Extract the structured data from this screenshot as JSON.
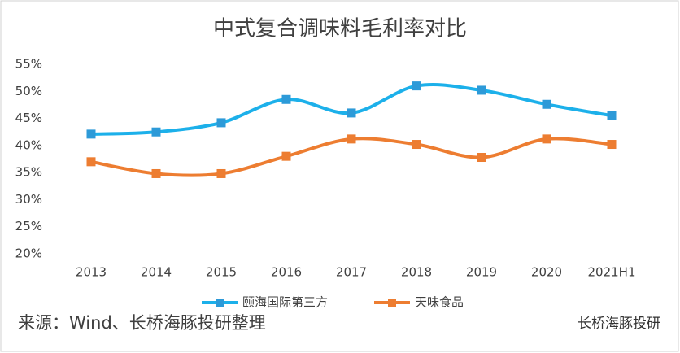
{
  "chart_data": {
    "type": "line",
    "title": "中式复合调味料毛利率对比",
    "categories": [
      "2013",
      "2014",
      "2015",
      "2016",
      "2017",
      "2018",
      "2019",
      "2020",
      "2021H1"
    ],
    "series": [
      {
        "name": "颐海国际第三方",
        "color": "#1cb0ea",
        "marker_color": "#2d9ad8",
        "values": [
          42.1,
          42.5,
          44.2,
          48.5,
          46.0,
          51.0,
          50.2,
          47.6,
          45.5
        ]
      },
      {
        "name": "天味食品",
        "color": "#ed7d31",
        "marker_color": "#ed7d31",
        "values": [
          37.0,
          34.8,
          34.8,
          38.0,
          41.2,
          40.2,
          37.8,
          41.2,
          40.2
        ]
      }
    ],
    "ylim": [
      20,
      55
    ],
    "yticks": [
      {
        "value": 20,
        "label": "20%"
      },
      {
        "value": 25,
        "label": "25%"
      },
      {
        "value": 30,
        "label": "30%"
      },
      {
        "value": 35,
        "label": "35%"
      },
      {
        "value": 40,
        "label": "40%"
      },
      {
        "value": 45,
        "label": "45%"
      },
      {
        "value": 50,
        "label": "50%"
      },
      {
        "value": 55,
        "label": "55%"
      }
    ],
    "grid": false,
    "smooth": true,
    "legend": "bottom",
    "source": "来源：Wind、长桥海豚投研整理",
    "watermark": "长桥海豚投研"
  }
}
